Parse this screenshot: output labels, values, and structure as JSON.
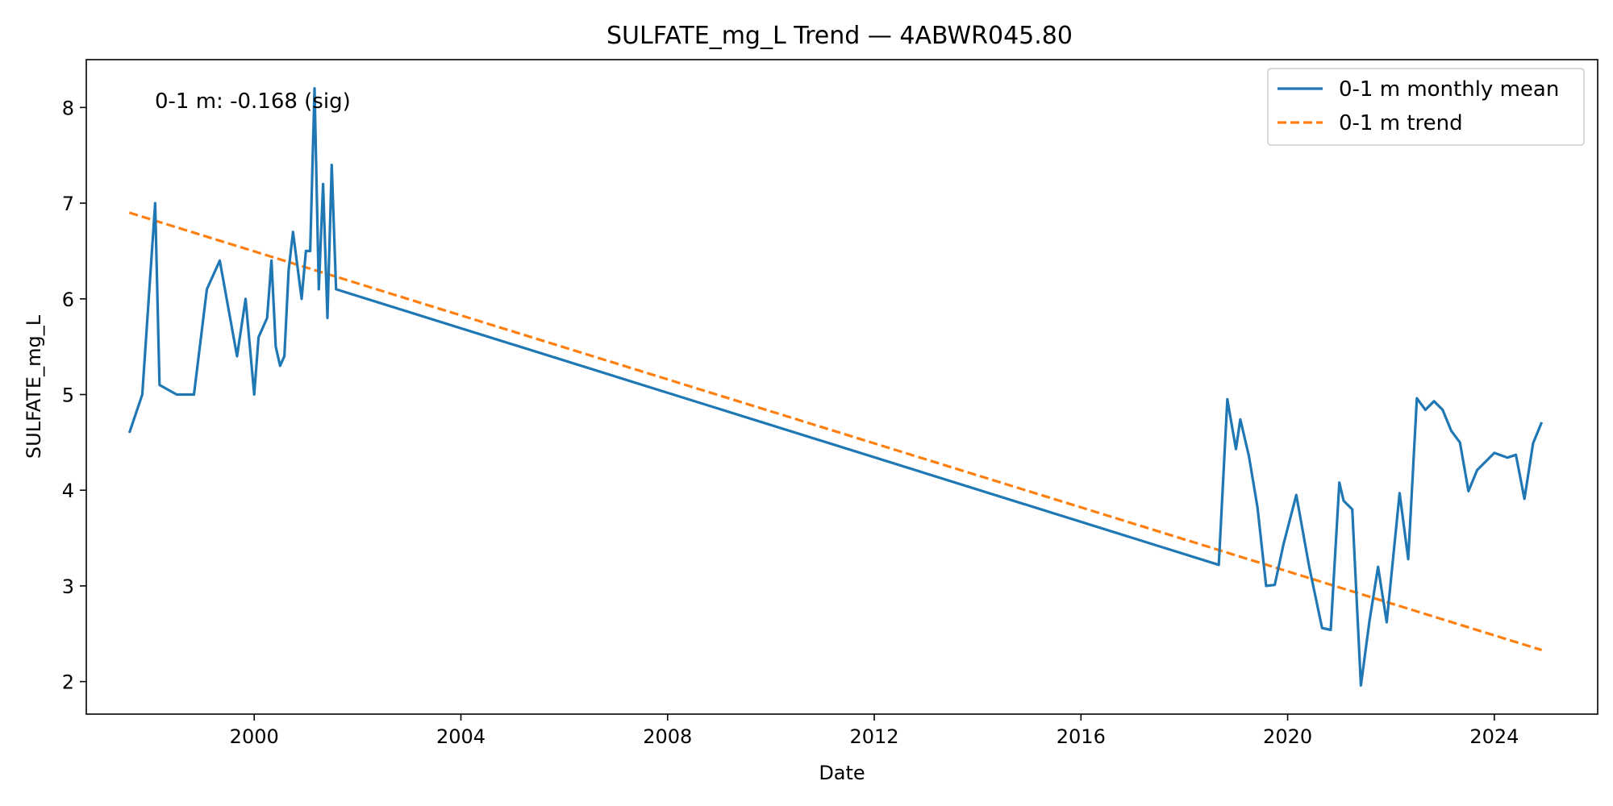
{
  "chart_data": {
    "type": "line",
    "title": "SULFATE_mg_L Trend — 4ABWR045.80",
    "xlabel": "Date",
    "ylabel": "SULFATE_mg_L",
    "xlim": [
      "1996-10-01",
      "2026-01-01"
    ],
    "ylim": [
      1.66,
      8.5
    ],
    "x_ticks": [
      "2000",
      "2004",
      "2008",
      "2012",
      "2016",
      "2020",
      "2024"
    ],
    "y_ticks": [
      "2",
      "3",
      "4",
      "5",
      "6",
      "7",
      "8"
    ],
    "grid": false,
    "legend_position": "top-right",
    "annotation": "0-1 m: -0.168 (sig)",
    "series": [
      {
        "name": "0-1 m monthly mean",
        "color": "#1f77b4",
        "style": "solid",
        "points": [
          [
            "1997-08",
            4.6
          ],
          [
            "1997-11",
            5.0
          ],
          [
            "1998-02",
            7.0
          ],
          [
            "1998-03",
            5.1
          ],
          [
            "1998-07",
            5.0
          ],
          [
            "1998-11",
            5.0
          ],
          [
            "1999-02",
            6.1
          ],
          [
            "1999-05",
            6.4
          ],
          [
            "1999-09",
            5.4
          ],
          [
            "1999-11",
            6.0
          ],
          [
            "2000-01",
            5.0
          ],
          [
            "2000-02",
            5.6
          ],
          [
            "2000-04",
            5.8
          ],
          [
            "2000-05",
            6.4
          ],
          [
            "2000-06",
            5.5
          ],
          [
            "2000-07",
            5.3
          ],
          [
            "2000-08",
            5.4
          ],
          [
            "2000-09",
            6.3
          ],
          [
            "2000-10",
            6.7
          ],
          [
            "2000-12",
            6.0
          ],
          [
            "2001-01",
            6.5
          ],
          [
            "2001-02",
            6.5
          ],
          [
            "2001-03",
            8.2
          ],
          [
            "2001-04",
            6.1
          ],
          [
            "2001-05",
            7.2
          ],
          [
            "2001-06",
            5.8
          ],
          [
            "2001-07",
            7.4
          ],
          [
            "2001-08",
            6.1
          ],
          [
            "2018-09",
            3.22
          ],
          [
            "2018-11",
            4.95
          ],
          [
            "2019-01",
            4.43
          ],
          [
            "2019-02",
            4.74
          ],
          [
            "2019-04",
            4.36
          ],
          [
            "2019-06",
            3.82
          ],
          [
            "2019-08",
            3.0
          ],
          [
            "2019-10",
            3.01
          ],
          [
            "2019-12",
            3.43
          ],
          [
            "2020-03",
            3.95
          ],
          [
            "2020-06",
            3.2
          ],
          [
            "2020-09",
            2.56
          ],
          [
            "2020-11",
            2.54
          ],
          [
            "2021-01",
            4.08
          ],
          [
            "2021-02",
            3.89
          ],
          [
            "2021-04",
            3.8
          ],
          [
            "2021-06",
            1.96
          ],
          [
            "2021-08",
            2.63
          ],
          [
            "2021-10",
            3.2
          ],
          [
            "2021-12",
            2.62
          ],
          [
            "2022-03",
            3.97
          ],
          [
            "2022-05",
            3.28
          ],
          [
            "2022-07",
            4.96
          ],
          [
            "2022-09",
            4.84
          ],
          [
            "2022-11",
            4.93
          ],
          [
            "2023-01",
            4.84
          ],
          [
            "2023-03",
            4.62
          ],
          [
            "2023-05",
            4.5
          ],
          [
            "2023-07",
            3.99
          ],
          [
            "2023-09",
            4.21
          ],
          [
            "2023-11",
            4.3
          ],
          [
            "2024-01",
            4.39
          ],
          [
            "2024-04",
            4.34
          ],
          [
            "2024-06",
            4.37
          ],
          [
            "2024-08",
            3.91
          ],
          [
            "2024-10",
            4.49
          ],
          [
            "2024-12",
            4.71
          ]
        ]
      },
      {
        "name": "0-1 m trend",
        "color": "#ff7f0e",
        "style": "dashed",
        "points": [
          [
            "1997-08",
            6.9
          ],
          [
            "2024-12",
            2.33
          ]
        ]
      }
    ]
  }
}
